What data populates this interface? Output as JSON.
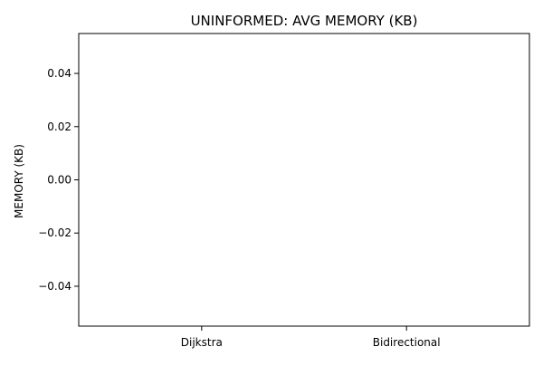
{
  "chart_data": {
    "type": "bar",
    "title": "UNINFORMED: AVG MEMORY (KB)",
    "xlabel": "",
    "ylabel": "MEMORY (KB)",
    "categories": [
      "Dijkstra",
      "Bidirectional"
    ],
    "values": [
      0,
      0
    ],
    "ylim": [
      -0.055,
      0.055
    ],
    "yticks": [
      0.04,
      0.02,
      0.0,
      -0.02,
      -0.04
    ],
    "ytick_labels": [
      "0.04",
      "0.02",
      "0.00",
      "−0.02",
      "−0.04"
    ],
    "grid": false,
    "legend": "none",
    "colors": {
      "axis": "#000000",
      "text": "#000000",
      "bar": "#1f77b4",
      "background": "#ffffff"
    }
  }
}
